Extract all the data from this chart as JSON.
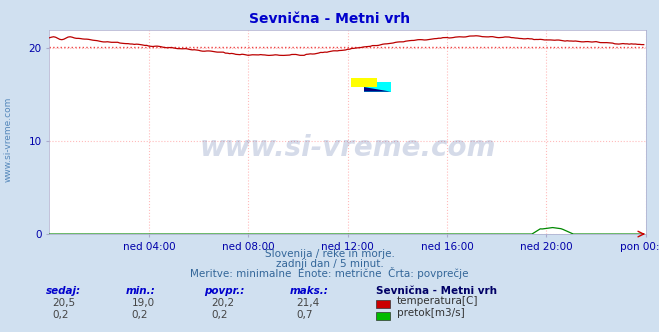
{
  "title": "Sevnična - Metni vrh",
  "title_color": "#0000cc",
  "bg_color": "#d0e0f0",
  "plot_bg_color": "#ffffff",
  "watermark_text": "www.si-vreme.com",
  "watermark_color": "#1a3a8a",
  "subtitle_lines": [
    "Slovenija / reke in morje.",
    "zadnji dan / 5 minut.",
    "Meritve: minimalne  Enote: metrične  Črta: povprečje"
  ],
  "left_label": "www.si-vreme.com",
  "xlabel_ticks": [
    "ned 04:00",
    "ned 08:00",
    "ned 12:00",
    "ned 16:00",
    "ned 20:00",
    "pon 00:00"
  ],
  "ylabel_ticks": [
    0,
    10,
    20
  ],
  "ylim": [
    0,
    22
  ],
  "xlim": [
    0,
    288
  ],
  "tick_label_color": "#0000aa",
  "grid_color": "#ffbbbb",
  "grid_style": ":",
  "temp_color": "#bb0000",
  "temp_avg_color": "#ee4444",
  "temp_avg_style": ":",
  "flow_color": "#008800",
  "temp_avg_value": 20.2,
  "stat_headers": [
    "sedaj:",
    "min.:",
    "povpr.:",
    "maks.:"
  ],
  "stat_values_temp": [
    "20,5",
    "19,0",
    "20,2",
    "21,4"
  ],
  "stat_values_flow": [
    "0,2",
    "0,2",
    "0,2",
    "0,7"
  ],
  "station_label": "Sevnična - Metni vrh",
  "series_labels": [
    "temperatura[C]",
    "pretok[m3/s]"
  ],
  "series_colors": [
    "#cc0000",
    "#00bb00"
  ]
}
